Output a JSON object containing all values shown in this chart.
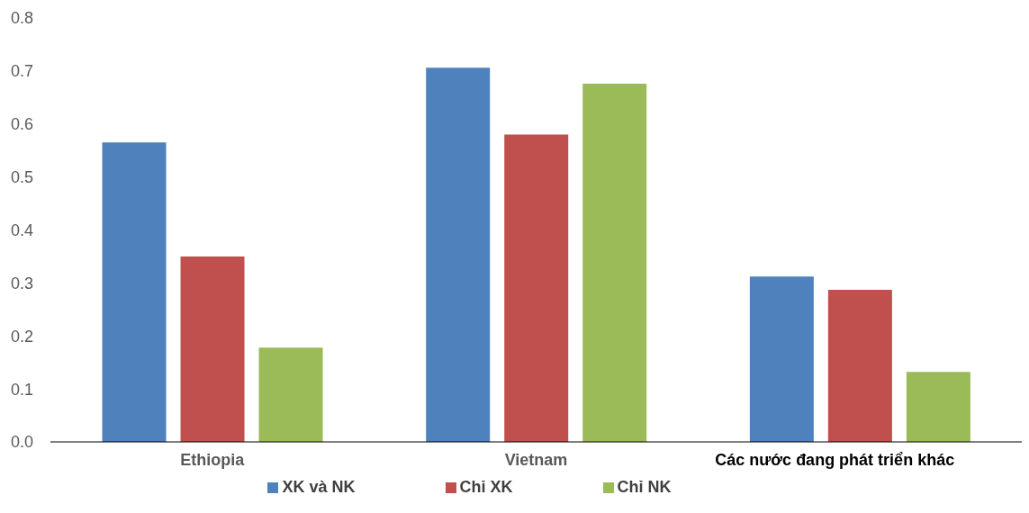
{
  "chart_data": {
    "type": "bar",
    "categories": [
      "Ethiopia",
      "Vietnam",
      "Các nước đang phát triển khác"
    ],
    "series": [
      {
        "name": "XK và NK",
        "color": "#4f81bd",
        "values": [
          0.565,
          0.706,
          0.312
        ]
      },
      {
        "name": "Chỉ XK",
        "color": "#c0504d",
        "values": [
          0.35,
          0.58,
          0.287
        ]
      },
      {
        "name": "Chỉ NK",
        "color": "#9bbb59",
        "values": [
          0.178,
          0.676,
          0.132
        ]
      }
    ],
    "ylim": [
      0,
      0.8
    ],
    "yticks": [
      {
        "value": 0,
        "label": "0.0"
      },
      {
        "value": 0.1,
        "label": "0.1"
      },
      {
        "value": 0.2,
        "label": "0.2"
      },
      {
        "value": 0.3,
        "label": "0.3"
      },
      {
        "value": 0.4,
        "label": "0.4"
      },
      {
        "value": 0.5,
        "label": "0.5"
      },
      {
        "value": 0.6,
        "label": "0.6"
      },
      {
        "value": 0.7,
        "label": "0.7"
      },
      {
        "value": 0.8,
        "label": "0.8"
      }
    ],
    "grid": false,
    "legend": "bottom"
  }
}
